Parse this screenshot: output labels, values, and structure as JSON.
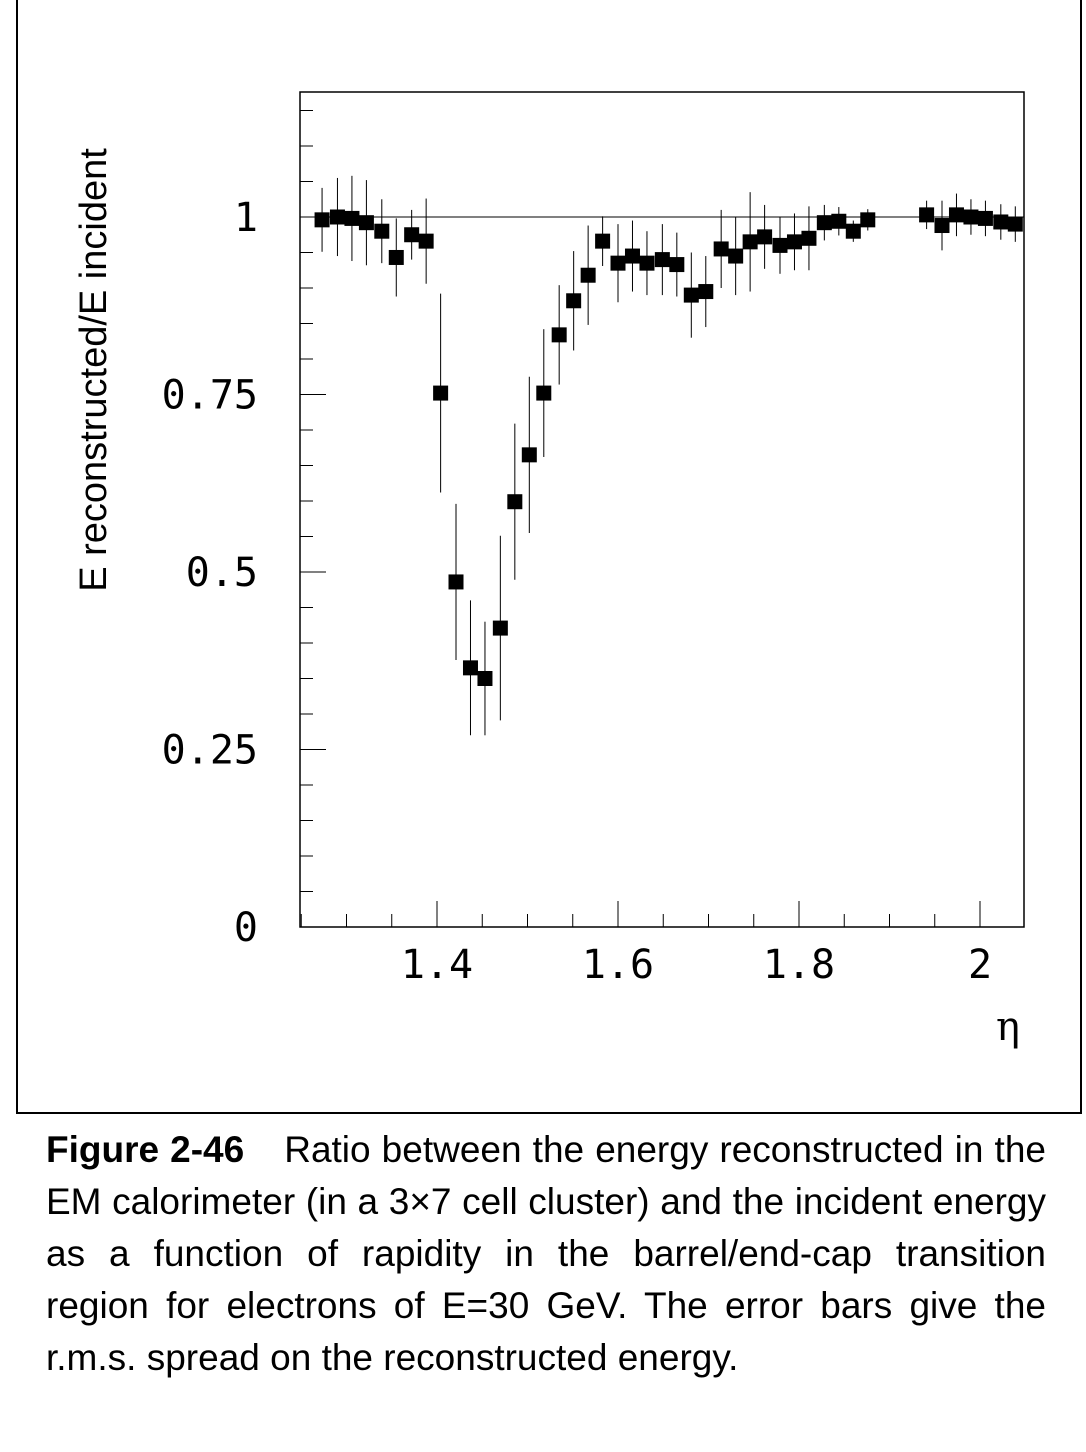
{
  "chart_data": {
    "type": "scatter",
    "xlabel": "η",
    "ylabel": "E reconstructed/E incident",
    "xlim": [
      1.25,
      2.05
    ],
    "ylim": [
      0,
      1.18
    ],
    "x_ticks": [
      "1.4",
      "1.6",
      "1.8",
      "2"
    ],
    "x_tick_values": [
      1.4,
      1.6,
      1.8,
      2.0
    ],
    "y_ticks": [
      "0",
      "0.25",
      "0.5",
      "0.75",
      "1"
    ],
    "y_tick_values": [
      0,
      0.25,
      0.5,
      0.75,
      1.0
    ],
    "reference_line": 1.0,
    "error_bars": "r.m.s. spread",
    "points": [
      {
        "x": 1.273,
        "y": 0.996,
        "err": 0.045
      },
      {
        "x": 1.29,
        "y": 1.0,
        "err": 0.055
      },
      {
        "x": 1.306,
        "y": 0.998,
        "err": 0.06
      },
      {
        "x": 1.322,
        "y": 0.992,
        "err": 0.06
      },
      {
        "x": 1.339,
        "y": 0.98,
        "err": 0.045
      },
      {
        "x": 1.355,
        "y": 0.943,
        "err": 0.055
      },
      {
        "x": 1.372,
        "y": 0.975,
        "err": 0.035
      },
      {
        "x": 1.388,
        "y": 0.966,
        "err": 0.06
      },
      {
        "x": 1.404,
        "y": 0.752,
        "err": 0.14
      },
      {
        "x": 1.421,
        "y": 0.486,
        "err": 0.11
      },
      {
        "x": 1.437,
        "y": 0.365,
        "err": 0.095
      },
      {
        "x": 1.453,
        "y": 0.35,
        "err": 0.08
      },
      {
        "x": 1.47,
        "y": 0.421,
        "err": 0.13
      },
      {
        "x": 1.486,
        "y": 0.599,
        "err": 0.11
      },
      {
        "x": 1.502,
        "y": 0.665,
        "err": 0.11
      },
      {
        "x": 1.518,
        "y": 0.752,
        "err": 0.09
      },
      {
        "x": 1.535,
        "y": 0.834,
        "err": 0.07
      },
      {
        "x": 1.551,
        "y": 0.882,
        "err": 0.07
      },
      {
        "x": 1.567,
        "y": 0.918,
        "err": 0.07
      },
      {
        "x": 1.583,
        "y": 0.966,
        "err": 0.035
      },
      {
        "x": 1.6,
        "y": 0.935,
        "err": 0.055
      },
      {
        "x": 1.616,
        "y": 0.945,
        "err": 0.05
      },
      {
        "x": 1.632,
        "y": 0.935,
        "err": 0.045
      },
      {
        "x": 1.649,
        "y": 0.94,
        "err": 0.05
      },
      {
        "x": 1.665,
        "y": 0.933,
        "err": 0.045
      },
      {
        "x": 1.681,
        "y": 0.89,
        "err": 0.06
      },
      {
        "x": 1.697,
        "y": 0.895,
        "err": 0.05
      },
      {
        "x": 1.714,
        "y": 0.955,
        "err": 0.055
      },
      {
        "x": 1.73,
        "y": 0.945,
        "err": 0.055
      },
      {
        "x": 1.746,
        "y": 0.965,
        "err": 0.07
      },
      {
        "x": 1.762,
        "y": 0.972,
        "err": 0.045
      },
      {
        "x": 1.779,
        "y": 0.96,
        "err": 0.04
      },
      {
        "x": 1.795,
        "y": 0.965,
        "err": 0.04
      },
      {
        "x": 1.811,
        "y": 0.97,
        "err": 0.045
      },
      {
        "x": 1.828,
        "y": 0.992,
        "err": 0.025
      },
      {
        "x": 1.844,
        "y": 0.994,
        "err": 0.02
      },
      {
        "x": 1.86,
        "y": 0.98,
        "err": 0.015
      },
      {
        "x": 1.876,
        "y": 0.996,
        "err": 0.015
      },
      {
        "x": 1.941,
        "y": 1.003,
        "err": 0.02
      },
      {
        "x": 1.958,
        "y": 0.988,
        "err": 0.035
      },
      {
        "x": 1.974,
        "y": 1.003,
        "err": 0.03
      },
      {
        "x": 1.99,
        "y": 1.0,
        "err": 0.025
      },
      {
        "x": 2.006,
        "y": 0.998,
        "err": 0.025
      },
      {
        "x": 2.023,
        "y": 0.993,
        "err": 0.025
      },
      {
        "x": 2.039,
        "y": 0.99,
        "err": 0.025
      },
      {
        "x": 2.055,
        "y": 0.992,
        "err": 0.02
      }
    ]
  },
  "caption": {
    "label": "Figure 2-46",
    "text": "Ratio between the energy reconstructed in the EM calorimeter (in a 3×7 cell cluster) and the incident energy as a function of rapidity in the barrel/end-cap transition region for electrons of E=30 GeV. The error bars give the r.m.s. spread on the reconstructed energy."
  }
}
